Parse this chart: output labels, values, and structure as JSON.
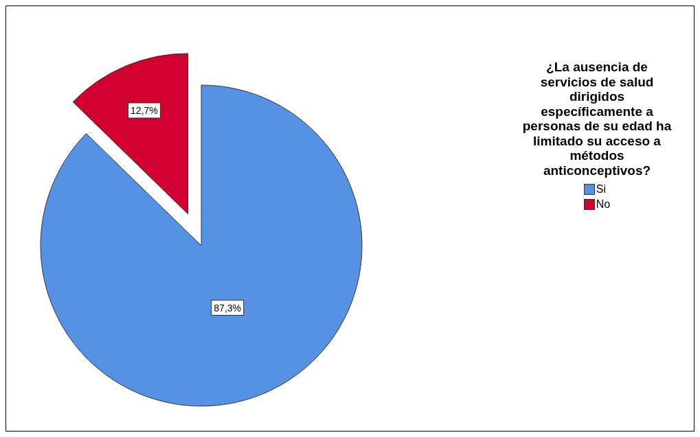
{
  "chart_data": {
    "type": "pie",
    "legend_title": "¿La ausencia de servicios de salud dirigidos específicamente a personas de su edad ha limitado su acceso a métodos anticonceptivos?",
    "categories": [
      "Si",
      "No"
    ],
    "values": [
      87.3,
      12.7
    ],
    "colors": [
      "#5592e3",
      "#d2002f"
    ],
    "value_labels": [
      "87,3%",
      "12,7%"
    ],
    "legend": "right"
  }
}
